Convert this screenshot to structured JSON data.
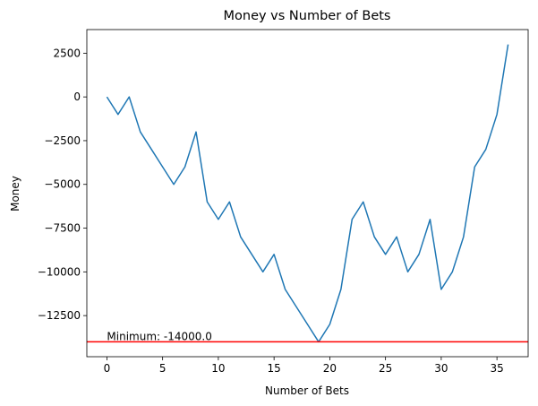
{
  "chart_data": {
    "type": "line",
    "title": "Money vs Number of Bets",
    "xlabel": "Number of Bets",
    "ylabel": "Money",
    "xlim": [
      -1.8,
      37.8
    ],
    "ylim": [
      -14850,
      3850
    ],
    "xticks": [
      0,
      5,
      10,
      15,
      20,
      25,
      30,
      35
    ],
    "yticks": [
      -12500,
      -10000,
      -7500,
      -5000,
      -2500,
      0,
      2500
    ],
    "ytick_labels": [
      "−12500",
      "−10000",
      "−7500",
      "−5000",
      "−2500",
      "0",
      "2500"
    ],
    "grid": false,
    "series": [
      {
        "color": "#1f77b4",
        "x": [
          0,
          1,
          2,
          3,
          4,
          5,
          6,
          7,
          8,
          9,
          10,
          11,
          12,
          13,
          14,
          15,
          16,
          17,
          18,
          19,
          20,
          21,
          22,
          23,
          24,
          25,
          26,
          27,
          28,
          29,
          30,
          31,
          32,
          33,
          34,
          35,
          36
        ],
        "y": [
          0,
          -1000,
          0,
          -2000,
          -3000,
          -4000,
          -5000,
          -4000,
          -2000,
          -6000,
          -7000,
          -6000,
          -8000,
          -9000,
          -10000,
          -9000,
          -11000,
          -12000,
          -13000,
          -14000,
          -13000,
          -11000,
          -7000,
          -6000,
          -8000,
          -9000,
          -8000,
          -10000,
          -9000,
          -7000,
          -11000,
          -10000,
          -8000,
          -4000,
          -3000,
          -1000,
          3000
        ]
      }
    ],
    "hline": {
      "y": -14000,
      "color": "#ff0000"
    },
    "annotation": {
      "text": "Minimum: -14000.0",
      "x": 0,
      "y": -14000
    }
  }
}
